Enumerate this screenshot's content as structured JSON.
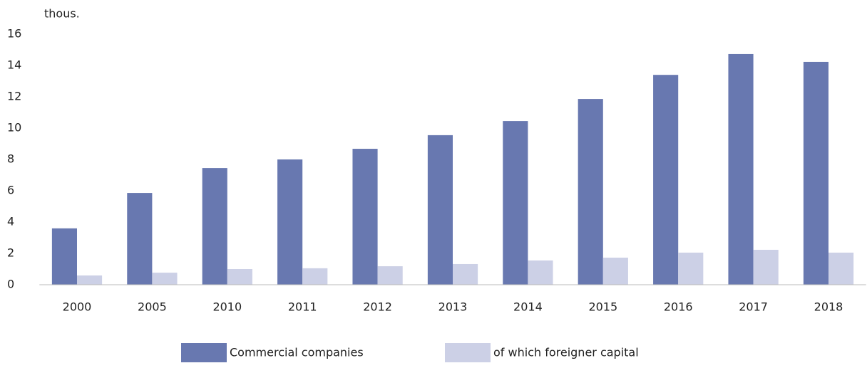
{
  "chart_data": {
    "type": "bar",
    "y_label": "thous.",
    "categories": [
      "2000",
      "2005",
      "2010",
      "2011",
      "2012",
      "2013",
      "2014",
      "2015",
      "2016",
      "2017",
      "2018"
    ],
    "series": [
      {
        "name": "Commercial companies",
        "color": "#6878b0",
        "values": [
          3.6,
          5.86,
          7.45,
          8.0,
          8.68,
          9.55,
          10.45,
          11.86,
          13.4,
          14.73,
          14.23
        ]
      },
      {
        "name": "of which foreigner capital",
        "color": "#ccd0e6",
        "values": [
          0.59,
          0.77,
          1.0,
          1.05,
          1.18,
          1.32,
          1.55,
          1.73,
          2.05,
          2.23,
          2.05
        ]
      }
    ],
    "ylim": [
      0,
      16
    ],
    "yticks": [
      0,
      2,
      4,
      6,
      8,
      10,
      12,
      14,
      16
    ],
    "grid": false,
    "legend": "bottom"
  }
}
